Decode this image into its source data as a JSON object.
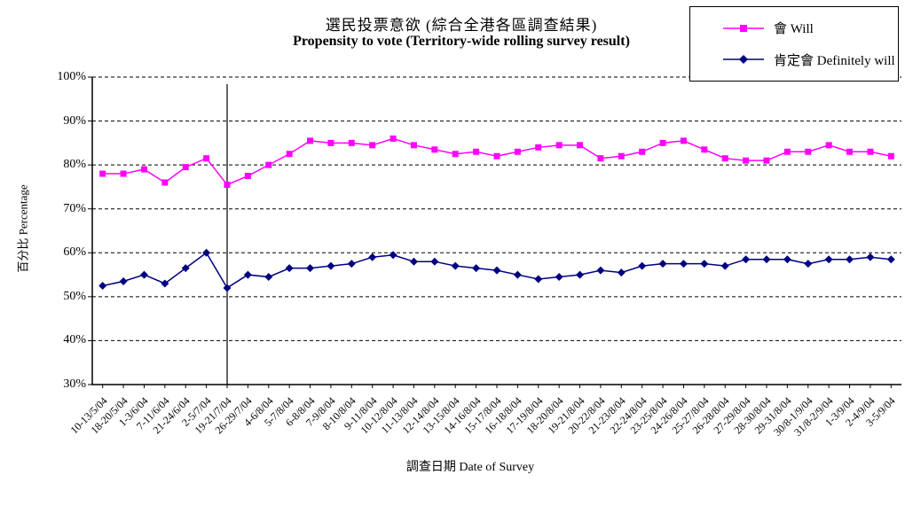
{
  "chart": {
    "title_zh": "選民投票意欲 (綜合全港各區調查結果)",
    "title_en": "Propensity to vote (Territory-wide rolling survey result)",
    "y_axis_title": "百分比 Percentage",
    "x_axis_title": "調查日期 Date of Survey"
  },
  "chart_data": {
    "type": "line",
    "title": "選民投票意欲 (綜合全港各區調查結果) Propensity to vote (Territory-wide rolling survey result)",
    "xlabel": "調查日期 Date of Survey",
    "ylabel": "百分比 Percentage",
    "ylim": [
      30,
      100
    ],
    "y_tick_step": 10,
    "y_tick_labels": [
      "30%",
      "40%",
      "50%",
      "60%",
      "70%",
      "80%",
      "90%",
      "100%"
    ],
    "grid": "horizontal-dashed-black",
    "legend_position": "top-right",
    "separator_index": 6,
    "categories": [
      "10-13/5/04",
      "18-20/5/04",
      "1-3/6/04",
      "7-11/6/04",
      "21-24/6/04",
      "2-5/7/04",
      "19-21/7/04",
      "26-29/7/04",
      "4-6/8/04",
      "5-7/8/04",
      "6-8/8/04",
      "7-9/8/04",
      "8-10/8/04",
      "9-11/8/04",
      "10-12/8/04",
      "11-13/8/04",
      "12-14/8/04",
      "13-15/8/04",
      "14-16/8/04",
      "15-17/8/04",
      "16-18/8/04",
      "17-19/8/04",
      "18-20/8/04",
      "19-21/8/04",
      "20-22/8/04",
      "21-23/8/04",
      "22-24/8/04",
      "23-25/8/04",
      "24-26/8/04",
      "25-27/8/04",
      "26-28/8/04",
      "27-29/8/04",
      "28-30/8/04",
      "29-31/8/04",
      "30/8-1/9/04",
      "31/8-2/9/04",
      "1-3/9/04",
      "2-4/9/04",
      "3-5/9/04"
    ],
    "series": [
      {
        "name": "會 Will",
        "color": "#FF00FF",
        "marker": "square",
        "values": [
          78,
          78,
          79,
          76,
          79.5,
          81.5,
          75.5,
          77.5,
          80,
          82.5,
          85.5,
          85,
          85,
          84.5,
          86,
          84.5,
          83.5,
          82.5,
          83,
          82,
          83,
          84,
          84.5,
          84.5,
          81.5,
          82,
          83,
          85,
          85.5,
          83.5,
          81.5,
          81,
          81,
          83,
          83,
          84.5,
          83,
          83,
          82
        ]
      },
      {
        "name": "肯定會 Definitely will",
        "color": "#000080",
        "marker": "diamond",
        "values": [
          52.5,
          53.5,
          55,
          53,
          56.5,
          60,
          52,
          55,
          54.5,
          56.5,
          56.5,
          57,
          57.5,
          59,
          59.5,
          58,
          58,
          57,
          56.5,
          56,
          55,
          54,
          54.5,
          55,
          56,
          55.5,
          57,
          57.5,
          57.5,
          57.5,
          57,
          58.5,
          58.5,
          58.5,
          57.5,
          58.5,
          58.5,
          59,
          58.5
        ]
      }
    ]
  }
}
